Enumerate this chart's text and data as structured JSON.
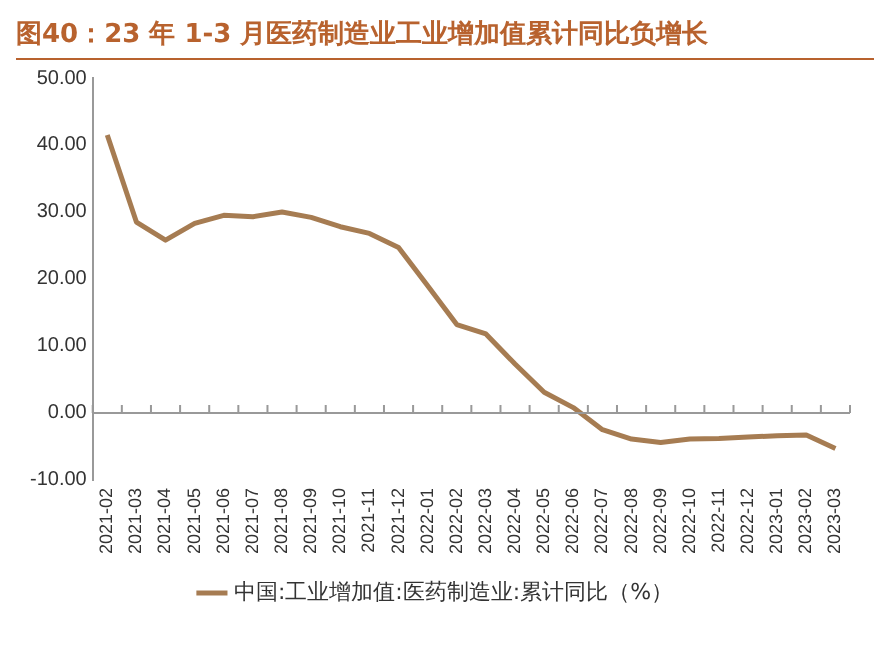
{
  "chart_data": {
    "type": "line",
    "title": "图40：23 年 1-3 月医药制造业工业增加值累计同比负增长",
    "categories": [
      "2021-02",
      "2021-03",
      "2021-04",
      "2021-05",
      "2021-06",
      "2021-07",
      "2021-08",
      "2021-09",
      "2021-10",
      "2021-11",
      "2021-12",
      "2022-01",
      "2022-02",
      "2022-03",
      "2022-04",
      "2022-05",
      "2022-06",
      "2022-07",
      "2022-08",
      "2022-09",
      "2022-10",
      "2022-11",
      "2022-12",
      "2023-01",
      "2023-02",
      "2023-03"
    ],
    "series": [
      {
        "name": "中国:工业增加值:医药制造业:累计同比（%）",
        "color": "#a67c52",
        "values": [
          41.5,
          28.5,
          25.8,
          28.3,
          29.5,
          29.3,
          30.0,
          29.2,
          27.8,
          26.8,
          24.7,
          19.0,
          13.2,
          11.8,
          7.3,
          3.1,
          0.8,
          -2.5,
          -3.9,
          -4.4,
          -3.9,
          -3.8,
          -3.6,
          -3.4,
          -3.3,
          -5.3
        ]
      }
    ],
    "ylim": [
      -10,
      50
    ],
    "yticks": [
      {
        "value": -10,
        "label": "-10.00"
      },
      {
        "value": 0,
        "label": "0.00"
      },
      {
        "value": 10,
        "label": "10.00"
      },
      {
        "value": 20,
        "label": "20.00"
      },
      {
        "value": 30,
        "label": "30.00"
      },
      {
        "value": 40,
        "label": "40.00"
      },
      {
        "value": 50,
        "label": "50.00"
      }
    ],
    "ref_lines": [
      {
        "axis": "y",
        "value": 0,
        "color": "#999999"
      }
    ],
    "grid": false,
    "legend": "bottom",
    "marker": "none",
    "line_style": "solid"
  }
}
